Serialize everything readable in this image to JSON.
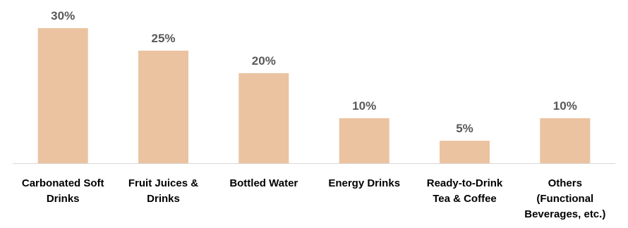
{
  "chart_data": {
    "type": "bar",
    "title": "",
    "xlabel": "",
    "ylabel": "",
    "categories": [
      [
        "Carbonated Soft",
        "Drinks"
      ],
      [
        "Fruit Juices &",
        "Drinks"
      ],
      [
        "Bottled Water"
      ],
      [
        "Energy Drinks"
      ],
      [
        "Ready-to-Drink",
        "Tea & Coffee"
      ],
      [
        "Others",
        "(Functional",
        "Beverages, etc.)"
      ]
    ],
    "values": [
      30,
      25,
      20,
      10,
      5,
      10
    ],
    "value_labels": [
      "30%",
      "25%",
      "20%",
      "10%",
      "5%",
      "10%"
    ],
    "ylim": [
      0,
      30
    ],
    "grid": false,
    "legend": "none",
    "bar_color": "#ebc3a0",
    "axis_color": "#d9d9d9"
  }
}
